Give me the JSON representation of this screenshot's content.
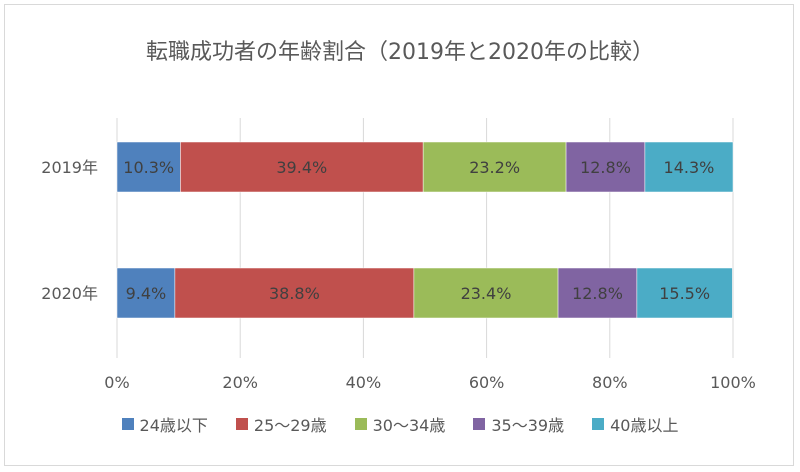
{
  "chart_data": {
    "type": "bar",
    "orientation": "horizontal",
    "stacked": "percent",
    "title": "転職成功者の年齢割合（2019年と2020年の比較）",
    "categories": [
      "2019年",
      "2020年"
    ],
    "series": [
      {
        "name": "24歳以下",
        "color": "#4f81bd",
        "values": [
          10.3,
          9.4
        ]
      },
      {
        "name": "25〜29歳",
        "color": "#c0504d",
        "values": [
          39.4,
          38.8
        ]
      },
      {
        "name": "30〜34歳",
        "color": "#9bbb59",
        "values": [
          23.2,
          23.4
        ]
      },
      {
        "name": "35〜39歳",
        "color": "#8064a2",
        "values": [
          12.8,
          12.8
        ]
      },
      {
        "name": "40歳以上",
        "color": "#4bacc6",
        "values": [
          14.3,
          15.5
        ]
      }
    ],
    "data_labels": [
      [
        "10.3%",
        "39.4%",
        "23.2%",
        "12.8%",
        "14.3%"
      ],
      [
        "9.4%",
        "38.8%",
        "23.4%",
        "12.8%",
        "15.5%"
      ]
    ],
    "x_ticks": [
      "0%",
      "20%",
      "40%",
      "60%",
      "80%",
      "100%"
    ],
    "xlim": [
      0,
      100
    ],
    "grid": true,
    "legend_position": "bottom"
  }
}
